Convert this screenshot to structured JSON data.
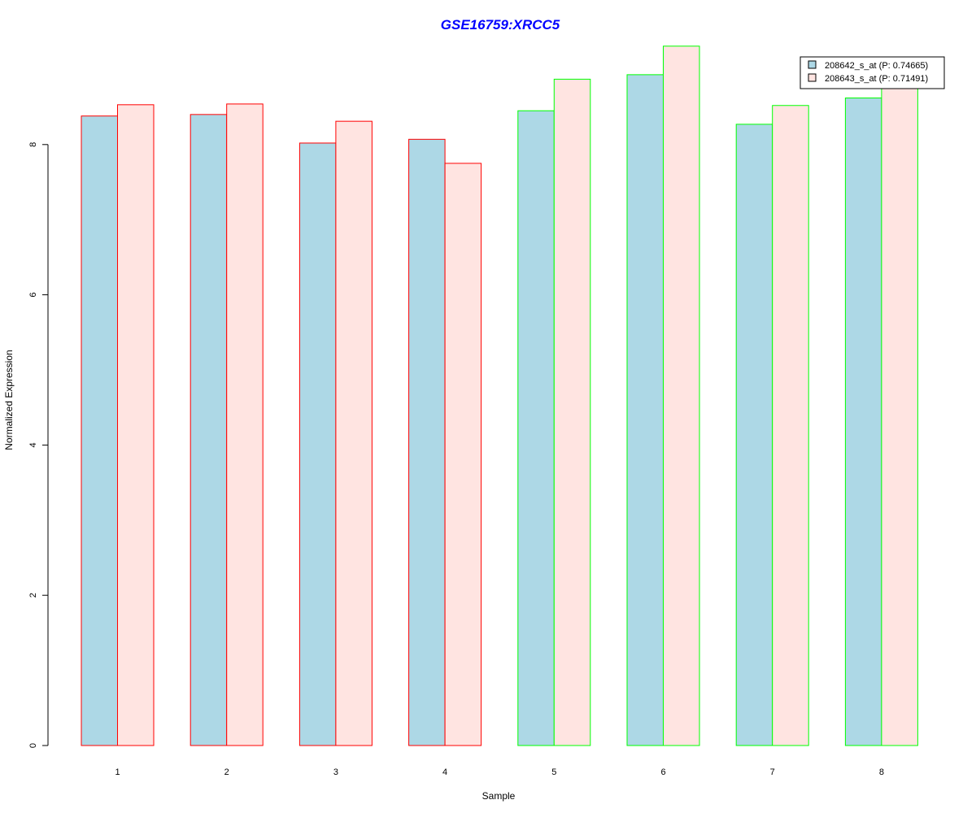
{
  "chart_data": {
    "type": "bar",
    "title": "GSE16759:XRCC5",
    "xlabel": "Sample",
    "ylabel": "Normalized Expression",
    "categories": [
      "1",
      "2",
      "3",
      "4",
      "5",
      "6",
      "7",
      "8"
    ],
    "yticks": [
      "0",
      "2",
      "4",
      "6",
      "8"
    ],
    "ylim": [
      0,
      9.6
    ],
    "grid": false,
    "legend_position": "top-right",
    "series": [
      {
        "name": "208642_s_at (P: 0.74665)",
        "fill": "#add8e6",
        "values": [
          8.38,
          8.4,
          8.02,
          8.07,
          8.45,
          8.93,
          8.27,
          8.62
        ]
      },
      {
        "name": "208643_s_at (P: 0.71491)",
        "fill": "#ffe4e1",
        "values": [
          8.53,
          8.54,
          8.31,
          7.75,
          8.87,
          9.31,
          8.52,
          8.78
        ]
      }
    ],
    "group_border_colors": [
      "#ff0000",
      "#ff0000",
      "#ff0000",
      "#ff0000",
      "#00ff00",
      "#00ff00",
      "#00ff00",
      "#00ff00"
    ],
    "title_color": "#0000ff"
  }
}
